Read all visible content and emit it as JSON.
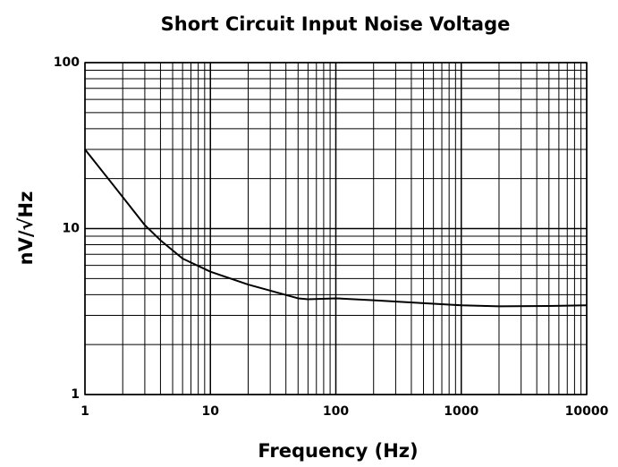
{
  "chart_data": {
    "type": "line",
    "title": "Short Circuit Input Noise Voltage",
    "x_label": "Frequency (Hz)",
    "y_label": "nV/√Hz",
    "x": [
      1,
      2,
      3,
      4,
      6,
      10,
      20,
      50,
      60,
      100,
      200,
      500,
      1000,
      2000,
      5000,
      10000
    ],
    "values": [
      30,
      15.5,
      10.5,
      8.5,
      6.6,
      5.5,
      4.6,
      3.8,
      3.75,
      3.8,
      3.7,
      3.55,
      3.45,
      3.4,
      3.42,
      3.45
    ],
    "color": "#000000",
    "xscale": "log",
    "yscale": "log",
    "xlim": [
      1,
      10000
    ],
    "ylim": [
      1,
      100
    ],
    "xticks": [
      1,
      10,
      100,
      1000,
      10000
    ],
    "yticks": [
      1,
      10,
      100
    ],
    "grid": true,
    "minor_grid": true
  }
}
